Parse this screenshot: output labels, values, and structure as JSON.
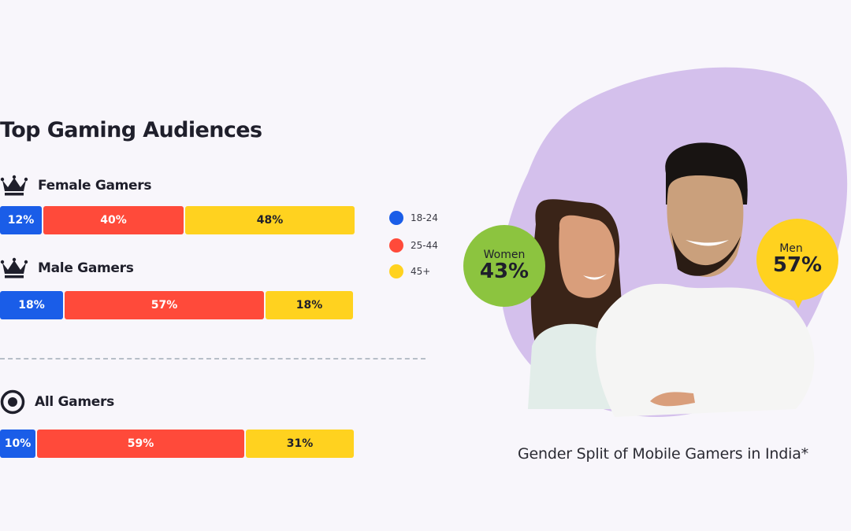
{
  "title": "Top Gaming Audiences",
  "groups": {
    "female": {
      "label": "Female Gamers",
      "icon": "crown-icon"
    },
    "male": {
      "label": "Male Gamers",
      "icon": "crown-icon"
    },
    "all": {
      "label": "All Gamers",
      "icon": "target-icon"
    }
  },
  "legend": [
    {
      "label": "18-24",
      "color": "#1a5de8"
    },
    {
      "label": "25-44",
      "color": "#ff4a3a"
    },
    {
      "label": "45+",
      "color": "#ffd21f"
    }
  ],
  "segments": {
    "female": [
      "12%",
      "40%",
      "48%"
    ],
    "male": [
      "18%",
      "57%",
      "18%"
    ],
    "all": [
      "10%",
      "59%",
      "31%"
    ]
  },
  "gender_split": {
    "women": {
      "label": "Women",
      "value": "43%",
      "color": "#8cc43f"
    },
    "men": {
      "label": "Men",
      "value": "57%",
      "color": "#ffd21f"
    },
    "caption": "Gender Split of Mobile Gamers in India*"
  },
  "chart_data": [
    {
      "type": "bar",
      "orientation": "horizontal-stacked",
      "title": "Top Gaming Audiences",
      "categories": [
        "Female Gamers",
        "Male Gamers",
        "All Gamers"
      ],
      "series": [
        {
          "name": "18-24",
          "values": [
            12,
            18,
            10
          ]
        },
        {
          "name": "25-44",
          "values": [
            40,
            57,
            59
          ]
        },
        {
          "name": "45+",
          "values": [
            48,
            18,
            31
          ]
        }
      ],
      "legend": "right",
      "grid": false
    },
    {
      "type": "pie",
      "title": "Gender Split of Mobile Gamers in India*",
      "categories": [
        "Women",
        "Men"
      ],
      "values": [
        43,
        57
      ]
    }
  ]
}
